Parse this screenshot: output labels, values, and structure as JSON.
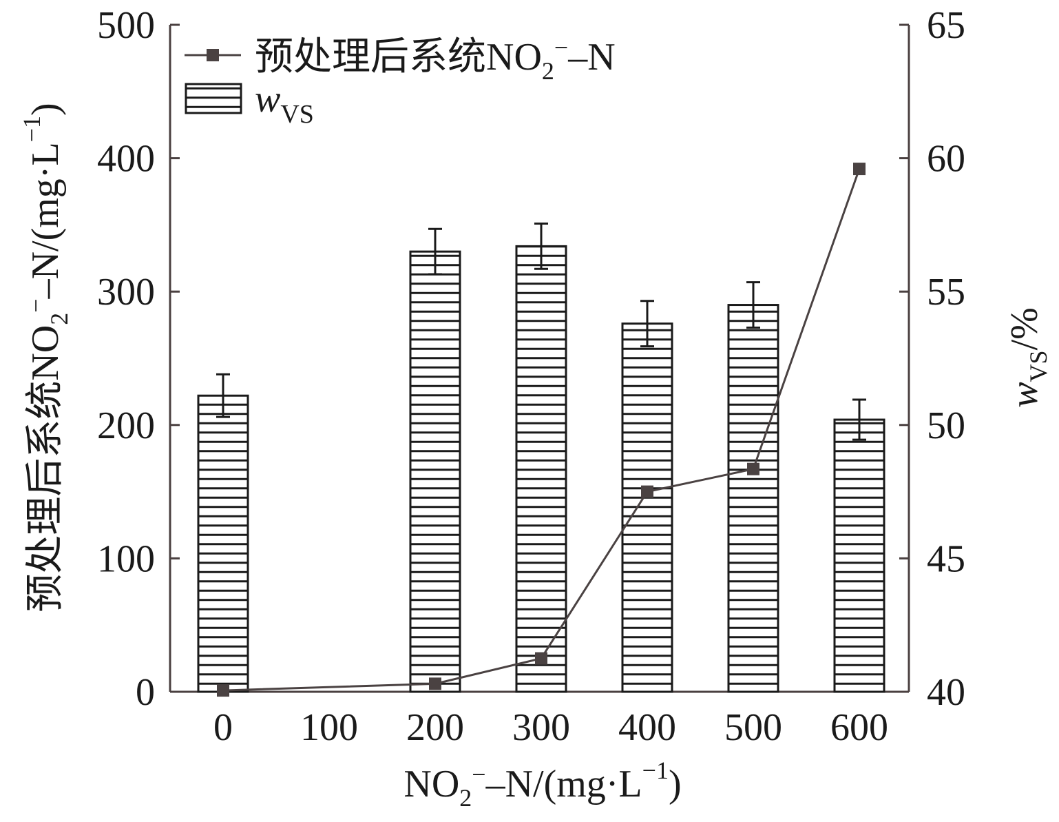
{
  "chart_data": {
    "type": "bar",
    "xlabel": {
      "pre": "NO",
      "sub": "2",
      "sup": "−",
      "post": "–N/(mg·L",
      "sup2": "−1",
      "close": ")"
    },
    "ylabel_left": {
      "pre": "预处理后系统NO",
      "sub": "2",
      "sup": "−",
      "post": "–N/(mg·L",
      "sup2": "−1",
      "close": ")"
    },
    "ylabel_right": {
      "pre": "w",
      "sub": "VS",
      "post": "/%"
    },
    "x_ticks": [
      "0",
      "100",
      "200",
      "300",
      "400",
      "500",
      "600"
    ],
    "y_left": {
      "min": 0,
      "max": 500,
      "ticks": [
        "0",
        "100",
        "200",
        "300",
        "400",
        "500"
      ]
    },
    "y_right": {
      "min": 40,
      "max": 65,
      "ticks": [
        "40",
        "45",
        "50",
        "55",
        "60",
        "65"
      ]
    },
    "bars": {
      "axis": "right",
      "x": [
        0,
        200,
        300,
        400,
        500,
        600
      ],
      "values": [
        51.1,
        56.5,
        56.7,
        53.8,
        54.5,
        50.2
      ],
      "error": [
        0.8,
        0.85,
        0.85,
        0.85,
        0.85,
        0.75
      ]
    },
    "line": {
      "axis": "left",
      "x": [
        0,
        200,
        300,
        400,
        500,
        600
      ],
      "values": [
        1,
        6,
        25,
        150,
        167,
        392
      ],
      "color": "#4a4242"
    },
    "legend": {
      "line": {
        "pre": "预处理后系统NO",
        "sub": "2",
        "sup": "−",
        "post": "–N"
      },
      "bars": {
        "pre": "w",
        "sub": "VS"
      }
    },
    "legend_position": "top-left",
    "grid": false
  }
}
